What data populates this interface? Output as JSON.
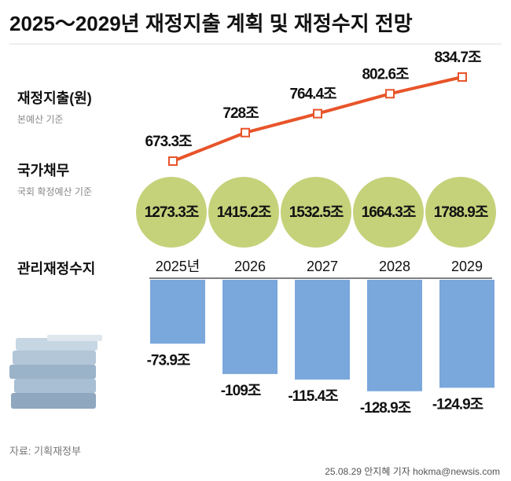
{
  "title": "2025～2029년 재정지출 계획 및 재정수지 전망",
  "source": "자료: 기획재정부",
  "credit": "25.08.29 안지혜 기자 hokma@newsis.com",
  "chart_data": [
    {
      "type": "line",
      "title": "재정지출(원)",
      "subtitle": "본예산 기준",
      "color": "#e8542a",
      "values": [
        673.3,
        728,
        764.4,
        802.6,
        834.7
      ],
      "value_labels": [
        "673.3조",
        "728조",
        "764.4조",
        "802.6조",
        "834.7조"
      ]
    },
    {
      "type": "circle",
      "title": "국가채무",
      "subtitle": "국회 확정예산 기준",
      "color": "#c5d27a",
      "values": [
        1273.3,
        1415.2,
        1532.5,
        1664.3,
        1788.9
      ],
      "value_labels": [
        "1273.3조",
        "1415.2조",
        "1532.5조",
        "1664.3조",
        "1788.9조"
      ]
    },
    {
      "type": "bar",
      "title": "관리재정수지",
      "color": "#7aa7dc",
      "categories": [
        "2025년",
        "2026",
        "2027",
        "2028",
        "2029"
      ],
      "values": [
        -73.9,
        -109,
        -115.4,
        -128.9,
        -124.9
      ],
      "value_labels": [
        "-73.9조",
        "-109조",
        "-115.4조",
        "-128.9조",
        "-124.9조"
      ]
    }
  ]
}
